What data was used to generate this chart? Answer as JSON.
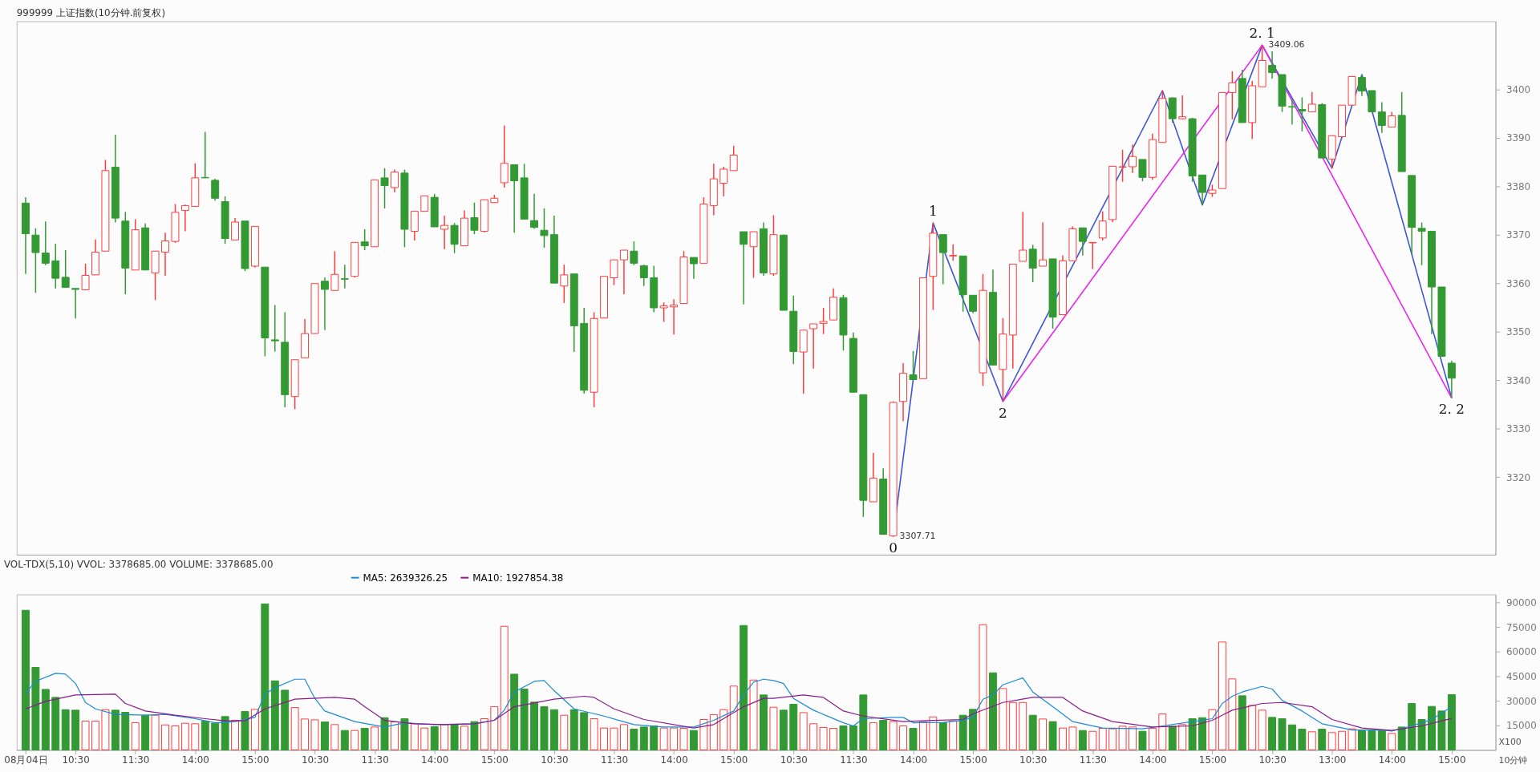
{
  "chart_data": [
    {
      "type": "candlestick",
      "title": "999999 上证指数(10分钟.前复权)",
      "categories": [
        null,
        null,
        null,
        null,
        null,
        null,
        null,
        null,
        null,
        null,
        null,
        null,
        null,
        null,
        null,
        null,
        null,
        null,
        null,
        null,
        null,
        null,
        null,
        null,
        null,
        null,
        null,
        null,
        null,
        null,
        null,
        null,
        null,
        null,
        null,
        null,
        null,
        null,
        null,
        null,
        null,
        null,
        null,
        null,
        null,
        null,
        null,
        null,
        null,
        null,
        null,
        null,
        null,
        null,
        null,
        null,
        null,
        null,
        null,
        null,
        null,
        null,
        null,
        null,
        null,
        null,
        null,
        null,
        null,
        null,
        null,
        null,
        null,
        null,
        null,
        null,
        null,
        null,
        null,
        null,
        null,
        null,
        null,
        null,
        null,
        null,
        null,
        null,
        null,
        null,
        null,
        null,
        null,
        null,
        null,
        null,
        null,
        null,
        null,
        null,
        null,
        null,
        null,
        null,
        null,
        null,
        null,
        null,
        null,
        null,
        null,
        null,
        null,
        null,
        null,
        null,
        null,
        null,
        null,
        null,
        null,
        null,
        null,
        null,
        null,
        null,
        null,
        null,
        null,
        null,
        null,
        null,
        null,
        null,
        null,
        null,
        null,
        null,
        null,
        null,
        null,
        null,
        null,
        null
      ],
      "ohlc": [
        [
          3376.5,
          3377.7,
          3361.9,
          3370.2
        ],
        [
          3369.9,
          3371.3,
          3358.0,
          3366.3
        ],
        [
          3366.2,
          3372.7,
          3363.7,
          3364.1
        ],
        [
          3364.6,
          3368.1,
          3358.9,
          3361.0
        ],
        [
          3361.2,
          3366.8,
          3359.1,
          3359.1
        ],
        [
          3358.9,
          3358.9,
          3352.7,
          3358.7
        ],
        [
          3358.6,
          3364.0,
          3358.6,
          3361.6
        ],
        [
          3361.7,
          3369.0,
          3361.7,
          3366.4
        ],
        [
          3366.6,
          3385.4,
          3366.6,
          3383.2
        ],
        [
          3383.9,
          3390.6,
          3372.5,
          3373.4
        ],
        [
          3372.8,
          3374.7,
          3357.7,
          3363.1
        ],
        [
          3362.7,
          3373.2,
          3362.7,
          3371.0
        ],
        [
          3371.4,
          3372.3,
          3362.7,
          3362.7
        ],
        [
          3362.1,
          3366.6,
          3356.5,
          3366.6
        ],
        [
          3366.4,
          3370.4,
          3361.5,
          3368.7
        ],
        [
          3368.6,
          3376.3,
          3368.3,
          3374.6
        ],
        [
          3375.0,
          3376.2,
          3370.7,
          3376.0
        ],
        [
          3375.8,
          3384.7,
          3375.8,
          3381.7
        ],
        [
          3381.8,
          3391.2,
          3381.7,
          3381.7
        ],
        [
          3381.2,
          3381.5,
          3377.0,
          3377.5
        ],
        [
          3376.8,
          3377.9,
          3368.1,
          3369.2
        ],
        [
          3368.9,
          3373.4,
          3368.9,
          3372.6
        ],
        [
          3372.8,
          3372.8,
          3362.5,
          3363.0
        ],
        [
          3363.5,
          3371.7,
          3363.2,
          3371.7
        ],
        [
          3363.3,
          3363.3,
          3344.9,
          3348.7
        ],
        [
          3348.3,
          3355.5,
          3345.9,
          3348.1
        ],
        [
          3347.8,
          3354.0,
          3334.4,
          3337.0
        ],
        [
          3336.6,
          3344.2,
          3334.0,
          3344.2
        ],
        [
          3344.6,
          3352.6,
          3344.6,
          3349.6
        ],
        [
          3349.6,
          3359.9,
          3349.6,
          3359.9
        ],
        [
          3360.4,
          3361.2,
          3350.3,
          3358.7
        ],
        [
          3358.5,
          3366.6,
          3358.5,
          3361.8
        ],
        [
          3360.9,
          3363.8,
          3358.9,
          3360.8
        ],
        [
          3361.4,
          3368.4,
          3361.2,
          3368.4
        ],
        [
          3368.5,
          3371.1,
          3366.8,
          3367.7
        ],
        [
          3367.5,
          3381.3,
          3367.5,
          3381.3
        ],
        [
          3381.7,
          3383.7,
          3375.4,
          3380.1
        ],
        [
          3379.7,
          3383.4,
          3378.7,
          3382.9
        ],
        [
          3382.7,
          3383.4,
          3367.4,
          3371.1
        ],
        [
          3370.7,
          3374.8,
          3368.8,
          3374.8
        ],
        [
          3374.8,
          3378.0,
          3374.8,
          3378.0
        ],
        [
          3377.7,
          3378.4,
          3371.6,
          3371.6
        ],
        [
          3371.1,
          3373.9,
          3367.0,
          3371.9
        ],
        [
          3371.9,
          3372.4,
          3366.2,
          3368.0
        ],
        [
          3367.7,
          3375.0,
          3367.7,
          3373.4
        ],
        [
          3373.5,
          3376.6,
          3370.1,
          3370.9
        ],
        [
          3370.7,
          3377.2,
          3370.5,
          3377.2
        ],
        [
          3376.6,
          3378.2,
          3376.6,
          3377.5
        ],
        [
          3380.7,
          3392.5,
          3379.7,
          3384.7
        ],
        [
          3384.4,
          3384.4,
          3370.4,
          3381.1
        ],
        [
          3381.7,
          3384.6,
          3373.2,
          3373.2
        ],
        [
          3372.9,
          3378.4,
          3371.2,
          3371.5
        ],
        [
          3370.9,
          3375.4,
          3367.3,
          3369.8
        ],
        [
          3370.0,
          3373.9,
          3360.0,
          3360.0
        ],
        [
          3359.4,
          3363.8,
          3355.9,
          3361.7
        ],
        [
          3361.9,
          3361.9,
          3345.8,
          3351.2
        ],
        [
          3351.7,
          3354.9,
          3337.2,
          3337.9
        ],
        [
          3337.5,
          3354.0,
          3334.4,
          3352.7
        ],
        [
          3352.8,
          3361.4,
          3352.8,
          3361.4
        ],
        [
          3361.1,
          3364.8,
          3359.6,
          3364.8
        ],
        [
          3364.8,
          3366.8,
          3357.7,
          3366.8
        ],
        [
          3366.6,
          3368.6,
          3363.7,
          3364.1
        ],
        [
          3363.6,
          3363.8,
          3359.4,
          3361.1
        ],
        [
          3361.1,
          3363.6,
          3354.0,
          3354.9
        ],
        [
          3354.9,
          3356.0,
          3352.0,
          3355.3
        ],
        [
          3355.1,
          3356.7,
          3349.4,
          3355.5
        ],
        [
          3355.8,
          3366.6,
          3355.8,
          3365.4
        ],
        [
          3365.3,
          3365.3,
          3360.9,
          3364.0
        ],
        [
          3364.1,
          3377.7,
          3364.1,
          3376.3
        ],
        [
          3376.0,
          3384.6,
          3374.0,
          3381.5
        ],
        [
          3380.6,
          3384.0,
          3377.9,
          3383.5
        ],
        [
          3383.2,
          3388.3,
          3383.2,
          3386.4
        ],
        [
          3370.6,
          3370.6,
          3355.6,
          3368.0
        ],
        [
          3367.5,
          3370.6,
          3361.1,
          3370.6
        ],
        [
          3371.2,
          3372.5,
          3361.5,
          3362.1
        ],
        [
          3361.9,
          3374.0,
          3361.5,
          3370.0
        ],
        [
          3369.9,
          3370.0,
          3354.4,
          3354.4
        ],
        [
          3354.2,
          3357.4,
          3343.3,
          3345.9
        ],
        [
          3345.8,
          3350.3,
          3337.2,
          3350.3
        ],
        [
          3350.6,
          3351.6,
          3342.4,
          3351.6
        ],
        [
          3351.7,
          3354.9,
          3349.5,
          3352.1
        ],
        [
          3352.4,
          3358.9,
          3352.4,
          3357.1
        ],
        [
          3357.0,
          3357.6,
          3346.1,
          3349.3
        ],
        [
          3348.6,
          3349.8,
          3337.5,
          3337.5
        ],
        [
          3337.0,
          3337.0,
          3311.8,
          3315.2
        ],
        [
          3314.9,
          3325.0,
          3314.9,
          3319.8
        ],
        [
          3319.6,
          3321.8,
          3308.2,
          3308.2
        ],
        [
          3307.9,
          3335.6,
          3307.71,
          3335.4
        ],
        [
          3335.6,
          3343.5,
          3331.5,
          3341.4
        ],
        [
          3341.1,
          3346.0,
          3340.1,
          3340.1
        ],
        [
          3340.3,
          3361.1,
          3340.3,
          3361.1
        ],
        [
          3361.4,
          3372.4,
          3354.5,
          3370.3
        ],
        [
          3370.0,
          3370.0,
          3359.8,
          3366.3
        ],
        [
          3365.6,
          3368.0,
          3364.6,
          3365.7
        ],
        [
          3365.6,
          3365.6,
          3354.1,
          3357.6
        ],
        [
          3357.5,
          3357.5,
          3353.8,
          3354.2
        ],
        [
          3341.5,
          3361.9,
          3338.8,
          3358.5
        ],
        [
          3358.1,
          3362.8,
          3343.1,
          3343.1
        ],
        [
          3342.2,
          3352.8,
          3335.6,
          3349.5
        ],
        [
          3349.3,
          3363.9,
          3342.4,
          3363.9
        ],
        [
          3364.5,
          3374.7,
          3364.5,
          3366.8
        ],
        [
          3367.0,
          3367.9,
          3360.2,
          3363.1
        ],
        [
          3363.5,
          3372.5,
          3363.5,
          3364.8
        ],
        [
          3365.0,
          3365.0,
          3350.6,
          3353.0
        ],
        [
          3353.5,
          3365.7,
          3353.5,
          3364.6
        ],
        [
          3364.6,
          3371.7,
          3364.6,
          3371.2
        ],
        [
          3371.4,
          3371.4,
          3365.7,
          3368.6
        ],
        [
          3368.3,
          3368.4,
          3362.9,
          3368.4
        ],
        [
          3369.3,
          3374.8,
          3368.8,
          3372.8
        ],
        [
          3373.1,
          3384.1,
          3372.6,
          3384.1
        ],
        [
          3383.9,
          3387.5,
          3380.9,
          3384.0
        ],
        [
          3384.0,
          3388.6,
          3382.7,
          3386.1
        ],
        [
          3385.5,
          3385.5,
          3381.0,
          3381.8
        ],
        [
          3381.8,
          3390.8,
          3381.3,
          3389.6
        ],
        [
          3389.0,
          3399.7,
          3389.0,
          3398.1
        ],
        [
          3398.2,
          3398.3,
          3393.1,
          3393.9
        ],
        [
          3393.9,
          3398.7,
          3393.8,
          3394.3
        ],
        [
          3393.9,
          3394.1,
          3380.9,
          3382.1
        ],
        [
          3382.3,
          3382.3,
          3376.1,
          3378.7
        ],
        [
          3378.5,
          3380.3,
          3377.8,
          3379.2
        ],
        [
          3379.5,
          3399.3,
          3379.5,
          3399.3
        ],
        [
          3399.3,
          3403.7,
          3393.8,
          3401.3
        ],
        [
          3402.2,
          3404.0,
          3393.1,
          3393.1
        ],
        [
          3393.1,
          3401.7,
          3389.7,
          3400.7
        ],
        [
          3400.5,
          3409.06,
          3400.5,
          3405.9
        ],
        [
          3404.9,
          3407.8,
          3402.2,
          3403.4
        ],
        [
          3403.0,
          3403.0,
          3395.3,
          3396.5
        ],
        [
          3396.4,
          3397.8,
          3392.7,
          3396.3
        ],
        [
          3395.8,
          3398.3,
          3391.3,
          3395.5
        ],
        [
          3395.3,
          3399.4,
          3395.3,
          3396.9
        ],
        [
          3396.8,
          3397.1,
          3385.8,
          3385.8
        ],
        [
          3385.6,
          3390.4,
          3383.7,
          3390.4
        ],
        [
          3390.2,
          3396.7,
          3390.2,
          3396.7
        ],
        [
          3396.7,
          3402.6,
          3396.7,
          3402.6
        ],
        [
          3402.4,
          3403.0,
          3398.6,
          3399.6
        ],
        [
          3399.7,
          3399.7,
          3395.3,
          3395.3
        ],
        [
          3395.3,
          3397.3,
          3391.0,
          3392.5
        ],
        [
          3392.2,
          3395.3,
          3392.2,
          3394.5
        ],
        [
          3394.6,
          3399.4,
          3383.0,
          3383.0
        ],
        [
          3382.2,
          3382.2,
          3366.0,
          3371.5
        ],
        [
          3371.3,
          3372.5,
          3363.7,
          3370.7
        ],
        [
          3370.7,
          3370.7,
          3349.5,
          3359.2
        ],
        [
          3359.2,
          3359.2,
          3344.9,
          3344.9
        ],
        [
          3343.5,
          3344.0,
          3336.3,
          3340.4
        ]
      ],
      "colors": [
        "#339933",
        "#339933",
        "#339933",
        "#339933",
        "#339933",
        "#339933",
        "#ff3b3b",
        "#ff3b3b",
        "#ff3b3b",
        "#339933",
        "#339933",
        "#ff3b3b",
        "#339933",
        "#ff3b3b",
        "#ff3b3b",
        "#ff3b3b",
        "#ff3b3b",
        "#ff3b3b",
        "#339933",
        "#339933",
        "#339933",
        "#ff3b3b",
        "#339933",
        "#ff3b3b",
        "#339933",
        "#339933",
        "#339933",
        "#ff3b3b",
        "#ff3b3b",
        "#ff3b3b",
        "#339933",
        "#ff3b3b",
        "#339933",
        "#ff3b3b",
        "#339933",
        "#ff3b3b",
        "#339933",
        "#ff3b3b",
        "#339933",
        "#ff3b3b",
        "#ff3b3b",
        "#339933",
        "#ff3b3b",
        "#339933",
        "#ff3b3b",
        "#339933",
        "#ff3b3b",
        "#ff3b3b",
        "#ff3b3b",
        "#339933",
        "#339933",
        "#339933",
        "#339933",
        "#339933",
        "#ff3b3b",
        "#339933",
        "#339933",
        "#ff3b3b",
        "#ff3b3b",
        "#ff3b3b",
        "#ff3b3b",
        "#339933",
        "#339933",
        "#339933",
        "#ff3b3b",
        "#ff3b3b",
        "#ff3b3b",
        "#339933",
        "#ff3b3b",
        "#ff3b3b",
        "#ff3b3b",
        "#ff3b3b",
        "#339933",
        "#ff3b3b",
        "#339933",
        "#ff3b3b",
        "#339933",
        "#339933",
        "#ff3b3b",
        "#ff3b3b",
        "#ff3b3b",
        "#ff3b3b",
        "#339933",
        "#339933",
        "#339933",
        "#ff3b3b",
        "#339933",
        "#ff3b3b",
        "#ff3b3b",
        "#339933",
        "#ff3b3b",
        "#ff3b3b",
        "#339933",
        "#ff3b3b",
        "#339933",
        "#339933",
        "#ff3b3b",
        "#339933",
        "#ff3b3b",
        "#ff3b3b",
        "#ff3b3b",
        "#339933",
        "#ff3b3b",
        "#339933",
        "#ff3b3b",
        "#ff3b3b",
        "#339933",
        "#ff3b3b",
        "#ff3b3b",
        "#ff3b3b",
        "#ff3b3b",
        "#ff3b3b",
        "#339933",
        "#ff3b3b",
        "#ff3b3b",
        "#339933",
        "#ff3b3b",
        "#339933",
        "#339933",
        "#ff3b3b",
        "#ff3b3b",
        "#ff3b3b",
        "#339933",
        "#ff3b3b",
        "#ff3b3b",
        "#339933",
        "#339933",
        "#339933",
        "#339933",
        "#ff3b3b",
        "#339933",
        "#ff3b3b",
        "#ff3b3b",
        "#ff3b3b",
        "#339933",
        "#339933",
        "#339933",
        "#ff3b3b",
        "#339933",
        "#339933",
        "#339933",
        "#339933",
        "#339933",
        "#339933"
      ],
      "series": [
        {
          "type": "line",
          "color": "#3b55d6",
          "values": [
            null,
            null,
            null,
            null,
            null,
            null,
            null,
            null,
            null,
            null,
            null,
            null,
            null,
            null,
            null,
            null,
            null,
            null,
            null,
            null,
            null,
            null,
            null,
            null,
            null,
            null,
            null,
            null,
            null,
            null,
            null,
            null,
            null,
            null,
            null,
            null,
            null,
            null,
            null,
            null,
            null,
            null,
            null,
            null,
            null,
            null,
            null,
            null,
            null,
            null,
            null,
            null,
            null,
            null,
            null,
            null,
            null,
            null,
            null,
            null,
            null,
            null,
            null,
            null,
            null,
            null,
            null,
            null,
            null,
            null,
            null,
            null,
            null,
            null,
            null,
            null,
            null,
            null,
            null,
            null,
            null,
            null,
            null,
            null,
            null,
            null,
            null,
            3307.71,
            null,
            null,
            null,
            3372.4,
            null,
            null,
            null,
            null,
            null,
            null,
            3335.6,
            null,
            null,
            null,
            null,
            null,
            null,
            null,
            null,
            null,
            null,
            null,
            null,
            null,
            null,
            null,
            3399.7,
            null,
            null,
            null,
            3376.1,
            null,
            null,
            null,
            null,
            null,
            3409.06,
            null,
            null,
            null,
            null,
            null,
            null,
            3383.7,
            null,
            null,
            3403.0,
            null,
            null,
            null,
            null,
            null,
            null,
            null,
            null,
            3336.3
          ]
        },
        {
          "type": "line",
          "color": "#ee22ee",
          "values": [
            null,
            null,
            null,
            null,
            null,
            null,
            null,
            null,
            null,
            null,
            null,
            null,
            null,
            null,
            null,
            null,
            null,
            null,
            null,
            null,
            null,
            null,
            null,
            null,
            null,
            null,
            null,
            null,
            null,
            null,
            null,
            null,
            null,
            null,
            null,
            null,
            null,
            null,
            null,
            null,
            null,
            null,
            null,
            null,
            null,
            null,
            null,
            null,
            null,
            null,
            null,
            null,
            null,
            null,
            null,
            null,
            null,
            null,
            null,
            null,
            null,
            null,
            null,
            null,
            null,
            null,
            null,
            null,
            null,
            null,
            null,
            null,
            null,
            null,
            null,
            null,
            null,
            null,
            null,
            null,
            null,
            null,
            null,
            null,
            null,
            null,
            null,
            null,
            null,
            null,
            null,
            null,
            null,
            null,
            null,
            null,
            null,
            null,
            3335.6,
            null,
            null,
            null,
            null,
            null,
            null,
            null,
            null,
            null,
            null,
            null,
            null,
            null,
            null,
            null,
            null,
            null,
            null,
            null,
            null,
            null,
            null,
            null,
            null,
            null,
            3409.06,
            null,
            null,
            null,
            null,
            null,
            null,
            null,
            null,
            null,
            null,
            null,
            null,
            null,
            null,
            null,
            null,
            null,
            null,
            3336.3
          ]
        }
      ],
      "annotations": [
        "0",
        "1",
        "2",
        "2. 1",
        "2. 2",
        "3307.71",
        "3409.06"
      ],
      "ylim": [
        3304,
        3414
      ],
      "yticks": [
        3320,
        3330,
        3340,
        3350,
        3360,
        3370,
        3380,
        3390,
        3400
      ]
    },
    {
      "type": "bar",
      "title": "VOL-TDX(5,10)  VVOL: 3378685.00  VOLUME: 3378685.00",
      "categories": [
        "08月04日",
        null,
        null,
        null,
        null,
        "10:30",
        null,
        null,
        null,
        null,
        null,
        "11:30",
        null,
        null,
        null,
        null,
        null,
        "14:00",
        null,
        null,
        null,
        null,
        null,
        "15:00",
        null,
        null,
        null,
        null,
        null,
        "10:30",
        null,
        null,
        null,
        null,
        null,
        "11:30",
        null,
        null,
        null,
        null,
        null,
        "14:00",
        null,
        null,
        null,
        null,
        null,
        "15:00",
        null,
        null,
        null,
        null,
        null,
        "10:30",
        null,
        null,
        null,
        null,
        null,
        "11:30",
        null,
        null,
        null,
        null,
        null,
        "14:00",
        null,
        null,
        null,
        null,
        null,
        "15:00",
        null,
        null,
        null,
        null,
        null,
        "10:30",
        null,
        null,
        null,
        null,
        null,
        "11:30",
        null,
        null,
        null,
        null,
        null,
        "14:00",
        null,
        null,
        null,
        null,
        null,
        "15:00",
        null,
        null,
        null,
        null,
        null,
        "10:30",
        null,
        null,
        null,
        null,
        null,
        "11:30",
        null,
        null,
        null,
        null,
        null,
        "14:00",
        null,
        null,
        null,
        null,
        null,
        "15:00",
        null,
        null,
        null,
        null,
        null,
        "10:30",
        null,
        null,
        null,
        null,
        null,
        "13:00",
        null,
        null,
        null,
        null,
        null,
        "14:00",
        null,
        null,
        null,
        null,
        null,
        "15:00"
      ],
      "series": [
        {
          "type": "bar",
          "colors": [
            "#339933",
            "#339933",
            "#339933",
            "#339933",
            "#339933",
            "#339933",
            "#ff3b3b",
            "#ff3b3b",
            "#ff3b3b",
            "#339933",
            "#339933",
            "#ff3b3b",
            "#339933",
            "#ff3b3b",
            "#ff3b3b",
            "#ff3b3b",
            "#ff3b3b",
            "#ff3b3b",
            "#339933",
            "#339933",
            "#339933",
            "#ff3b3b",
            "#339933",
            "#ff3b3b",
            "#339933",
            "#339933",
            "#339933",
            "#ff3b3b",
            "#ff3b3b",
            "#ff3b3b",
            "#339933",
            "#ff3b3b",
            "#339933",
            "#ff3b3b",
            "#339933",
            "#ff3b3b",
            "#339933",
            "#ff3b3b",
            "#339933",
            "#ff3b3b",
            "#ff3b3b",
            "#339933",
            "#ff3b3b",
            "#339933",
            "#ff3b3b",
            "#339933",
            "#ff3b3b",
            "#ff3b3b",
            "#ff3b3b",
            "#339933",
            "#339933",
            "#339933",
            "#339933",
            "#339933",
            "#ff3b3b",
            "#339933",
            "#339933",
            "#ff3b3b",
            "#ff3b3b",
            "#ff3b3b",
            "#ff3b3b",
            "#339933",
            "#339933",
            "#339933",
            "#ff3b3b",
            "#ff3b3b",
            "#ff3b3b",
            "#339933",
            "#ff3b3b",
            "#ff3b3b",
            "#ff3b3b",
            "#ff3b3b",
            "#339933",
            "#ff3b3b",
            "#339933",
            "#ff3b3b",
            "#339933",
            "#339933",
            "#ff3b3b",
            "#ff3b3b",
            "#ff3b3b",
            "#ff3b3b",
            "#339933",
            "#339933",
            "#339933",
            "#ff3b3b",
            "#339933",
            "#ff3b3b",
            "#ff3b3b",
            "#339933",
            "#ff3b3b",
            "#ff3b3b",
            "#339933",
            "#ff3b3b",
            "#339933",
            "#339933",
            "#ff3b3b",
            "#339933",
            "#ff3b3b",
            "#ff3b3b",
            "#ff3b3b",
            "#339933",
            "#ff3b3b",
            "#339933",
            "#ff3b3b",
            "#ff3b3b",
            "#339933",
            "#ff3b3b",
            "#ff3b3b",
            "#ff3b3b",
            "#ff3b3b",
            "#ff3b3b",
            "#339933",
            "#ff3b3b",
            "#ff3b3b",
            "#339933",
            "#ff3b3b",
            "#339933",
            "#339933",
            "#ff3b3b",
            "#ff3b3b",
            "#ff3b3b",
            "#339933",
            "#ff3b3b",
            "#ff3b3b",
            "#339933",
            "#339933",
            "#339933",
            "#339933",
            "#ff3b3b",
            "#339933",
            "#ff3b3b",
            "#ff3b3b",
            "#ff3b3b",
            "#339933",
            "#339933",
            "#339933",
            "#ff3b3b",
            "#339933",
            "#339933",
            "#339933",
            "#339933",
            "#339933",
            "#339933"
          ],
          "values": [
            85300,
            50400,
            37000,
            32100,
            24600,
            24300,
            17600,
            17600,
            24600,
            24300,
            23000,
            16600,
            21200,
            21200,
            15300,
            14700,
            16300,
            16000,
            17600,
            16300,
            20400,
            18100,
            23500,
            24800,
            89200,
            42200,
            36500,
            25900,
            18900,
            18400,
            17100,
            15500,
            11900,
            11900,
            13200,
            14000,
            19700,
            17100,
            19100,
            16000,
            13400,
            14200,
            15500,
            15500,
            14500,
            17300,
            19100,
            26400,
            75500,
            46300,
            37200,
            29200,
            26400,
            24600,
            21200,
            24600,
            22800,
            19100,
            13400,
            13400,
            15500,
            12700,
            14000,
            14700,
            13400,
            13400,
            13200,
            11900,
            18600,
            21500,
            24600,
            39000,
            76000,
            42700,
            33600,
            26100,
            24300,
            27900,
            22800,
            16000,
            13700,
            13200,
            14700,
            14700,
            33600,
            16600,
            18100,
            17300,
            14700,
            13200,
            17300,
            20200,
            16600,
            17800,
            21200,
            24800,
            76500,
            47100,
            37500,
            29000,
            29000,
            21200,
            18900,
            17300,
            13400,
            14000,
            11900,
            11400,
            13200,
            12900,
            14500,
            14000,
            11400,
            13200,
            22000,
            14500,
            15500,
            19100,
            19700,
            24600,
            65900,
            43400,
            33100,
            27200,
            24300,
            19900,
            19100,
            15300,
            12700,
            11100,
            12700,
            10600,
            11400,
            12900,
            11900,
            11900,
            11900,
            10100,
            14000,
            28400,
            18600,
            26600,
            23800,
            33800
          ]
        },
        {
          "type": "line",
          "name": "MA5: 2639326.25",
          "color": "#1a8ad4",
          "values": [
            34600,
            42000,
            null,
            46800,
            46300,
            40600,
            29000,
            25100,
            null,
            21700,
            null,
            null,
            21200,
            null,
            21700,
            null,
            null,
            19100,
            null,
            16600,
            null,
            17300,
            null,
            19900,
            34100,
            38000,
            null,
            43200,
            43200,
            31500,
            23800,
            null,
            null,
            17300,
            null,
            null,
            14000,
            null,
            16600,
            null,
            null,
            15500,
            null,
            null,
            null,
            16000,
            null,
            18100,
            24300,
            35400,
            null,
            41900,
            42400,
            36200,
            null,
            25100,
            null,
            null,
            20700,
            null,
            null,
            15500,
            null,
            null,
            14000,
            null,
            null,
            14000,
            null,
            18100,
            null,
            23800,
            33600,
            41400,
            43200,
            42400,
            40600,
            31500,
            null,
            24300,
            null,
            null,
            16600,
            14700,
            19100,
            null,
            null,
            19900,
            19900,
            16600,
            null,
            null,
            16800,
            null,
            18100,
            19900,
            31000,
            33600,
            39800,
            null,
            44000,
            35400,
            null,
            26400,
            null,
            17300,
            null,
            null,
            13400,
            null,
            null,
            null,
            12900,
            null,
            14700,
            null,
            null,
            17300,
            null,
            19100,
            28400,
            32800,
            35400,
            null,
            38800,
            37200,
            30300,
            null,
            23800,
            null,
            16000,
            null,
            null,
            12200,
            null,
            null,
            12200,
            11600,
            null,
            14700,
            null,
            18600,
            null,
            26400
          ]
        },
        {
          "type": "line",
          "name": "MA10: 1927854.38",
          "color": "#8b1a8b",
          "values": [
            25100,
            null,
            29700,
            null,
            null,
            33600,
            null,
            null,
            null,
            34100,
            28400,
            null,
            23800,
            null,
            null,
            21200,
            null,
            null,
            19100,
            null,
            17800,
            null,
            17800,
            null,
            25100,
            null,
            null,
            31000,
            null,
            null,
            null,
            32100,
            null,
            31000,
            26400,
            null,
            18100,
            null,
            null,
            16000,
            null,
            null,
            15500,
            null,
            null,
            16000,
            null,
            18100,
            null,
            26400,
            null,
            null,
            null,
            31000,
            null,
            null,
            32800,
            32100,
            null,
            25100,
            null,
            null,
            18600,
            null,
            null,
            null,
            null,
            13400,
            null,
            15500,
            null,
            null,
            26400,
            null,
            31500,
            31500,
            null,
            null,
            33600,
            null,
            32100,
            null,
            23800,
            null,
            20700,
            null,
            null,
            null,
            17300,
            null,
            null,
            18100,
            null,
            null,
            18600,
            22000,
            null,
            null,
            29000,
            null,
            null,
            32100,
            null,
            null,
            32100,
            null,
            23800,
            null,
            null,
            17300,
            null,
            null,
            null,
            14000,
            null,
            null,
            null,
            14700,
            null,
            18100,
            null,
            24300,
            null,
            null,
            28400,
            null,
            29000,
            null,
            null,
            26400,
            null,
            18600,
            null,
            null,
            13400,
            null,
            null,
            11900,
            null,
            null,
            14700,
            null,
            null,
            19300
          ]
        }
      ],
      "annotations": [
        "X100",
        "10分钟"
      ],
      "legend": "top left",
      "ylim": [
        0,
        95000
      ],
      "yticks": [
        15000,
        30000,
        45000,
        60000,
        75000,
        90000
      ]
    }
  ]
}
